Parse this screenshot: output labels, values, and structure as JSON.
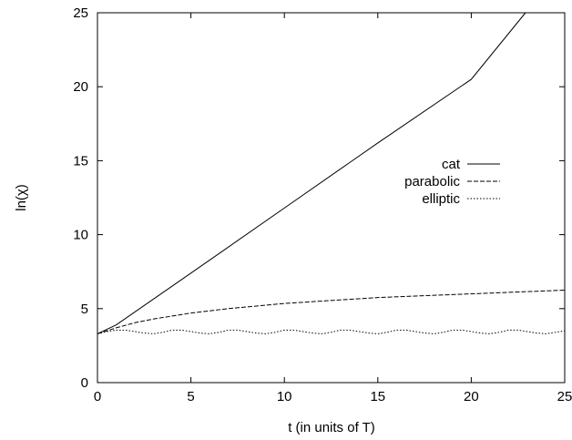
{
  "chart_data": {
    "type": "line",
    "title": "",
    "xlabel": "t (in units of T)",
    "ylabel": "ln(χ)",
    "xlim": [
      0,
      25
    ],
    "ylim": [
      0,
      25
    ],
    "xticks": [
      0,
      5,
      10,
      15,
      20,
      25
    ],
    "yticks": [
      0,
      5,
      10,
      15,
      20,
      25
    ],
    "grid": false,
    "legend_position": "right",
    "series": [
      {
        "name": "cat",
        "style": "solid",
        "x": [
          0,
          1,
          5,
          10,
          15,
          20,
          22.9
        ],
        "y": [
          3.3,
          3.9,
          7.4,
          11.8,
          16.2,
          20.5,
          25.0
        ]
      },
      {
        "name": "parabolic",
        "style": "dashed",
        "x": [
          0,
          1,
          2,
          3,
          5,
          7,
          10,
          15,
          20,
          25
        ],
        "y": [
          3.3,
          3.7,
          4.05,
          4.3,
          4.7,
          5.0,
          5.35,
          5.75,
          6.0,
          6.25
        ]
      },
      {
        "name": "elliptic",
        "style": "dotted",
        "x": [
          0,
          0.5,
          1,
          1.5,
          2,
          2.5,
          3,
          3.5,
          4,
          4.5,
          5,
          5.5,
          6,
          6.5,
          7,
          7.5,
          8,
          8.5,
          9,
          9.5,
          10,
          10.5,
          11,
          11.5,
          12,
          12.5,
          13,
          13.5,
          14,
          14.5,
          15,
          15.5,
          16,
          16.5,
          17,
          17.5,
          18,
          18.5,
          19,
          19.5,
          20,
          20.5,
          21,
          21.5,
          22,
          22.5,
          23,
          23.5,
          24,
          24.5,
          25
        ],
        "y": [
          3.3,
          3.45,
          3.55,
          3.55,
          3.45,
          3.35,
          3.3,
          3.4,
          3.55,
          3.55,
          3.45,
          3.35,
          3.3,
          3.4,
          3.55,
          3.55,
          3.45,
          3.35,
          3.3,
          3.4,
          3.55,
          3.55,
          3.45,
          3.35,
          3.3,
          3.4,
          3.55,
          3.55,
          3.45,
          3.35,
          3.3,
          3.4,
          3.55,
          3.55,
          3.45,
          3.35,
          3.3,
          3.4,
          3.55,
          3.55,
          3.45,
          3.35,
          3.3,
          3.4,
          3.55,
          3.55,
          3.45,
          3.35,
          3.3,
          3.4,
          3.5
        ]
      }
    ]
  }
}
